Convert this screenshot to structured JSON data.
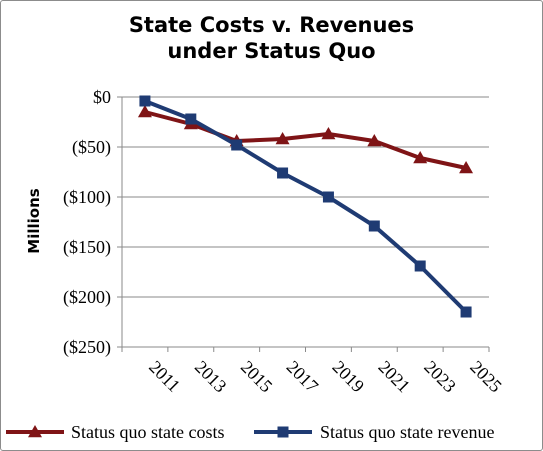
{
  "chart_data": {
    "type": "line",
    "title_lines": [
      "State Costs v. Revenues",
      "under Status Quo"
    ],
    "ylabel": "Millions",
    "xlabel": "",
    "categories": [
      "2011",
      "2013",
      "2015",
      "2017",
      "2019",
      "2021",
      "2023",
      "2025"
    ],
    "ylim": [
      -250,
      0
    ],
    "yticks": [
      0,
      -50,
      -100,
      -150,
      -200,
      -250
    ],
    "ytick_labels": [
      "$0",
      "($50)",
      "($100)",
      "($150)",
      "($200)",
      "($250)"
    ],
    "grid": "horizontal",
    "legend_position": "bottom",
    "series": [
      {
        "name": "Status quo state costs",
        "color": "#7f1416",
        "marker": "triangle",
        "values": [
          -15,
          -27,
          -44,
          -42,
          -37,
          -44,
          -61,
          -71
        ]
      },
      {
        "name": "Status quo state revenue",
        "color": "#1f3b73",
        "marker": "square",
        "values": [
          -4,
          -22,
          -48,
          -76,
          -100,
          -129,
          -169,
          -215
        ]
      }
    ]
  }
}
